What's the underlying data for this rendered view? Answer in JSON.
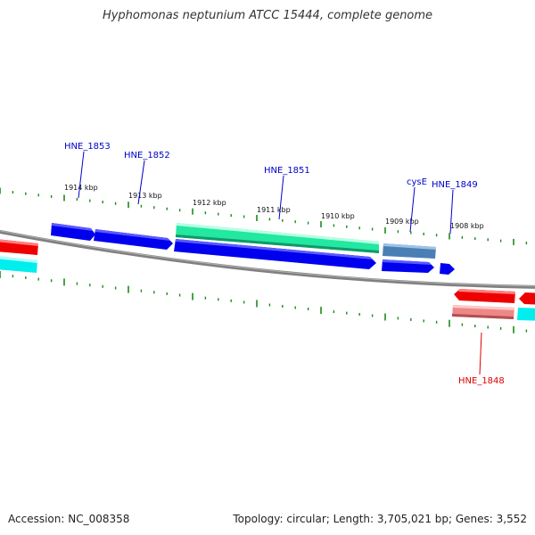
{
  "title": "Hyphomonas neptunium ATCC 15444, complete genome",
  "footer": {
    "accession": "Accession: NC_008358",
    "stats": "Topology: circular; Length: 3,705,021 bp; Genes: 3,552"
  },
  "colors": {
    "tick": "#1a8a1a",
    "backbone": "#808080",
    "forward_cds": "#0000ee",
    "reverse_cds": "#ee0000",
    "forward_pseudo": "#22e8a0",
    "reverse_pseudo": "#ee8888",
    "steel_cds": "#4a7fb5",
    "cyan_feature": "#00eeee",
    "label_forward": "#0000cc",
    "label_reverse": "#dd0000"
  },
  "kbp_labels": [
    "1914 kbp",
    "1913 kbp",
    "1912 kbp",
    "1911 kbp",
    "1910 kbp",
    "1909 kbp",
    "1908 kbp"
  ],
  "gene_labels": {
    "hne1853": "HNE_1853",
    "hne1852": "HNE_1852",
    "hne1851": "HNE_1851",
    "cyse": "cysE",
    "hne1849": "HNE_1849",
    "hne1848": "HNE_1848"
  }
}
